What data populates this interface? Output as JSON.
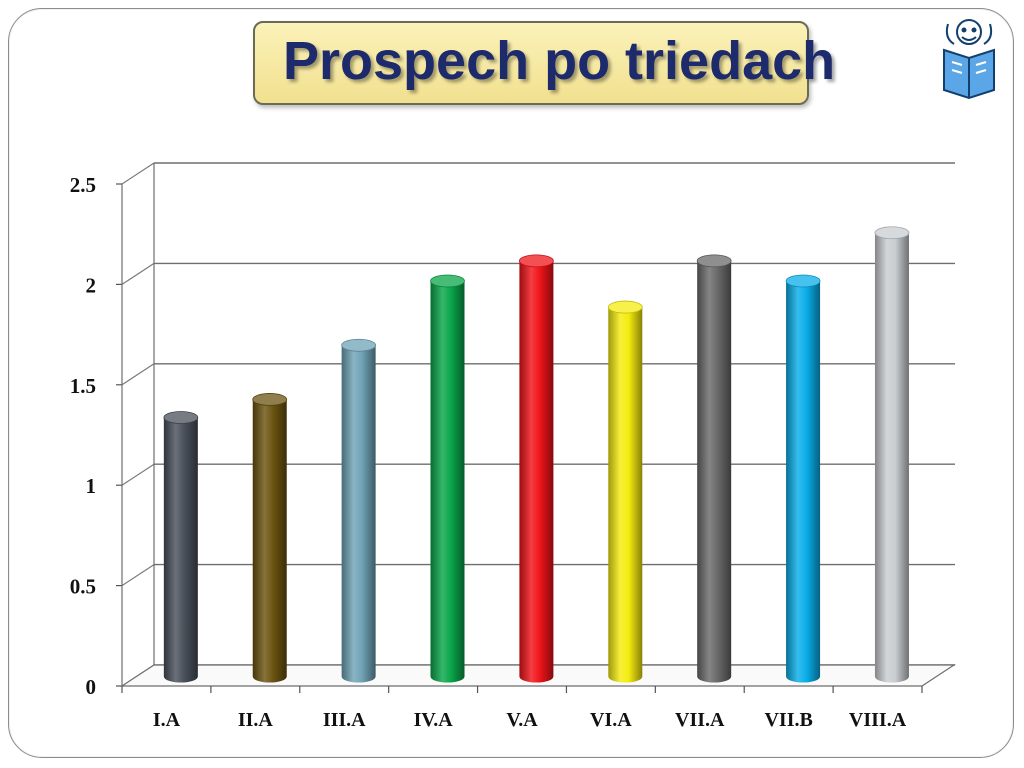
{
  "slide": {
    "title": "Prospech po triedach",
    "logo_icon": "school-mascot-logo-icon"
  },
  "chart_data": {
    "type": "bar",
    "style": "3d-cylinder",
    "title": "",
    "xlabel": "",
    "ylabel": "",
    "ylim": [
      0,
      2.5
    ],
    "yticks": [
      "0",
      "0.5",
      "1",
      "1.5",
      "2",
      "2.5"
    ],
    "grid": true,
    "legend": "none",
    "categories": [
      "I.A",
      "II.A",
      "III.A",
      "IV.A",
      "V.A",
      "VI.A",
      "VII.A",
      "VII.B",
      "VIII.A"
    ],
    "series": [
      {
        "values": [
          1.29,
          1.38,
          1.65,
          1.97,
          2.07,
          1.84,
          2.07,
          1.97,
          2.21
        ],
        "colors": [
          "#4a505a",
          "#6b5410",
          "#6fa3b6",
          "#0aa64a",
          "#f0141a",
          "#f5eb0f",
          "#6a6a6a",
          "#0aaeea",
          "#c9cdd1"
        ]
      }
    ]
  }
}
